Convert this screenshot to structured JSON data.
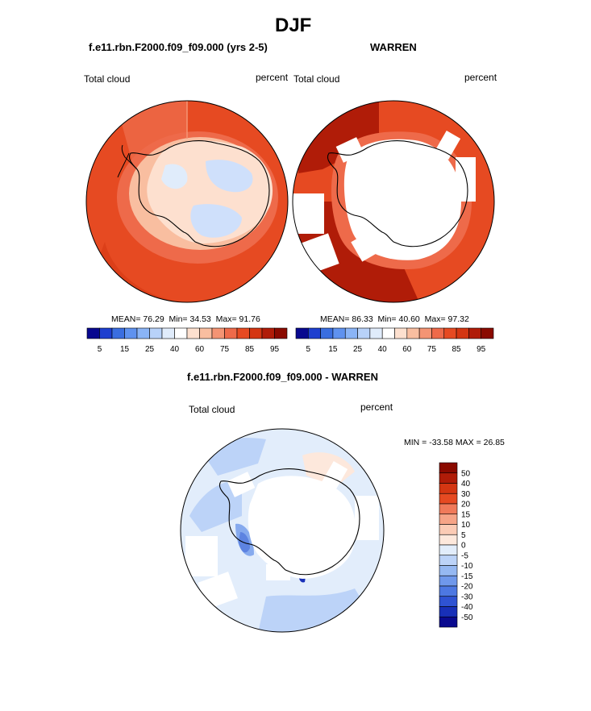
{
  "page": {
    "title": "DJF"
  },
  "panels": [
    {
      "id": "model",
      "subtitle": "f.e11.rbn.F2000.f09_f09.000 (yrs 2-5)",
      "left_label": "Total cloud",
      "right_label": "percent",
      "stats": {
        "mean_label": "MEAN=",
        "mean": "76.29",
        "min_label": "Min=",
        "min": "34.53",
        "max_label": "Max=",
        "max": "91.76"
      }
    },
    {
      "id": "obs",
      "subtitle": "WARREN",
      "left_label": "Total cloud",
      "right_label": "percent",
      "stats": {
        "mean_label": "MEAN=",
        "mean": "86.33",
        "min_label": "Min=",
        "min": "40.60",
        "max_label": "Max=",
        "max": "97.32"
      }
    },
    {
      "id": "diff",
      "subtitle": "f.e11.rbn.F2000.f09_f09.000 - WARREN",
      "left_label": "Total cloud",
      "right_label": "percent",
      "minmax_text": "MIN = -33.58 MAX =  26.85"
    }
  ],
  "chart_data": [
    {
      "type": "heatmap",
      "projection": "south polar stereographic",
      "field": "Total cloud",
      "units": "percent",
      "mean": 76.29,
      "min": 34.53,
      "max": 91.76,
      "colorbar": {
        "orientation": "horizontal",
        "tick_labels": [
          "5",
          "15",
          "25",
          "40",
          "60",
          "75",
          "85",
          "95"
        ],
        "levels": [
          5,
          10,
          15,
          20,
          25,
          30,
          40,
          50,
          60,
          70,
          75,
          80,
          85,
          90,
          95
        ],
        "colors": [
          "#08088f",
          "#1e3fcf",
          "#3a6ee0",
          "#5f92ef",
          "#8ab4f6",
          "#b8d2f9",
          "#e0ecfb",
          "#ffffff",
          "#fde0cf",
          "#f9bea0",
          "#f49474",
          "#ee6a4a",
          "#e64a22",
          "#d43612",
          "#b01c08",
          "#8a0a00"
        ]
      }
    },
    {
      "type": "heatmap",
      "projection": "south polar stereographic",
      "field": "Total cloud",
      "units": "percent",
      "mean": 86.33,
      "min": 40.6,
      "max": 97.32,
      "colorbar": {
        "orientation": "horizontal",
        "tick_labels": [
          "5",
          "15",
          "25",
          "40",
          "60",
          "75",
          "85",
          "95"
        ],
        "levels": [
          5,
          10,
          15,
          20,
          25,
          30,
          40,
          50,
          60,
          70,
          75,
          80,
          85,
          90,
          95
        ],
        "colors": [
          "#08088f",
          "#1e3fcf",
          "#3a6ee0",
          "#5f92ef",
          "#8ab4f6",
          "#b8d2f9",
          "#e0ecfb",
          "#ffffff",
          "#fde0cf",
          "#f9bea0",
          "#f49474",
          "#ee6a4a",
          "#e64a22",
          "#d43612",
          "#b01c08",
          "#8a0a00"
        ]
      }
    },
    {
      "type": "heatmap",
      "projection": "south polar stereographic",
      "field": "Total cloud",
      "units": "percent",
      "min": -33.58,
      "max": 26.85,
      "colorbar": {
        "orientation": "vertical",
        "tick_labels": [
          "50",
          "40",
          "30",
          "20",
          "15",
          "10",
          "5",
          "0",
          "-5",
          "-10",
          "-15",
          "-20",
          "-30",
          "-40",
          "-50"
        ],
        "colors": [
          "#8a0a00",
          "#b01c08",
          "#d43612",
          "#e64a22",
          "#f07a5a",
          "#f6a487",
          "#fbcbb5",
          "#fde8dc",
          "#e2edfb",
          "#bcd3f8",
          "#95b8f2",
          "#6f98eb",
          "#4d78e2",
          "#2f53d3",
          "#1830b8",
          "#0a0a8f"
        ]
      }
    }
  ]
}
